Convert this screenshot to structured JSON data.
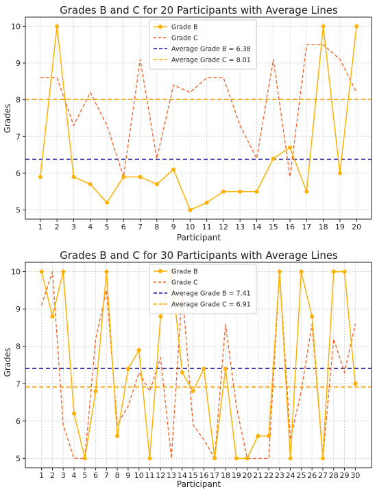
{
  "colors": {
    "grade_b": "#FFB000",
    "grade_c": "#FF5A1F",
    "avg_b": "#1010A0",
    "avg_c": "#FFA500",
    "grid": "#cccccc",
    "axes": "#222222"
  },
  "chart_data": [
    {
      "type": "line",
      "title": "Grades B and C for 20 Participants with Average Lines",
      "xlabel": "Participant",
      "ylabel": "Grades",
      "x": [
        1,
        2,
        3,
        4,
        5,
        6,
        7,
        8,
        9,
        10,
        11,
        12,
        13,
        14,
        15,
        16,
        17,
        18,
        19,
        20
      ],
      "xlim": [
        0.1,
        20.9
      ],
      "ylim": [
        4.75,
        10.25
      ],
      "yticks": [
        5,
        6,
        7,
        8,
        9,
        10
      ],
      "grid": true,
      "legend_position": "top-center",
      "series": [
        {
          "name": "Grade B",
          "style": "solid-marker",
          "values": [
            5.9,
            10,
            5.9,
            5.7,
            5.2,
            5.9,
            5.9,
            5.7,
            6.1,
            5.0,
            5.2,
            5.5,
            5.5,
            5.5,
            6.4,
            6.7,
            5.5,
            10,
            6.0,
            10
          ]
        },
        {
          "name": "Grade C",
          "style": "dashed",
          "values": [
            8.6,
            8.6,
            7.3,
            8.2,
            7.3,
            5.9,
            9.1,
            6.4,
            8.4,
            8.2,
            8.6,
            8.6,
            7.3,
            6.4,
            9.1,
            5.9,
            9.5,
            9.5,
            9.1,
            8.2
          ]
        }
      ],
      "averages": [
        {
          "name": "Average Grade B = 6.38",
          "value": 6.38
        },
        {
          "name": "Average Grade C = 8.01",
          "value": 8.01
        }
      ]
    },
    {
      "type": "line",
      "title": "Grades B and C for 30 Participants with Average Lines",
      "xlabel": "Participant",
      "ylabel": "Grades",
      "x": [
        1,
        2,
        3,
        4,
        5,
        6,
        7,
        8,
        9,
        10,
        11,
        12,
        13,
        14,
        15,
        16,
        17,
        18,
        19,
        20,
        21,
        22,
        23,
        24,
        25,
        26,
        27,
        28,
        29,
        30
      ],
      "xlim": [
        -0.5,
        31.5
      ],
      "ylim": [
        4.75,
        10.25
      ],
      "yticks": [
        5,
        6,
        7,
        8,
        9,
        10
      ],
      "grid": true,
      "legend_position": "top-center",
      "series": [
        {
          "name": "Grade B",
          "style": "solid-marker",
          "values": [
            10,
            8.8,
            10,
            6.2,
            5.0,
            6.8,
            10,
            5.6,
            7.4,
            7.9,
            5.0,
            8.8,
            10,
            7.3,
            6.8,
            7.4,
            5.0,
            7.4,
            5.0,
            5.0,
            5.6,
            5.6,
            10,
            5.0,
            10,
            8.8,
            5.0,
            10,
            10,
            7.0
          ]
        },
        {
          "name": "Grade C",
          "style": "dashed",
          "values": [
            9.1,
            10,
            5.9,
            5.0,
            5.0,
            8.2,
            9.5,
            5.9,
            6.4,
            7.3,
            6.8,
            7.7,
            5.0,
            9.5,
            5.9,
            5.5,
            5.0,
            8.6,
            6.4,
            5.0,
            5.0,
            5.0,
            10,
            5.5,
            6.8,
            8.6,
            5.0,
            8.2,
            7.3,
            8.6
          ]
        }
      ],
      "averages": [
        {
          "name": "Average Grade B = 7.41",
          "value": 7.41
        },
        {
          "name": "Average Grade C = 6.91",
          "value": 6.91
        }
      ]
    }
  ]
}
